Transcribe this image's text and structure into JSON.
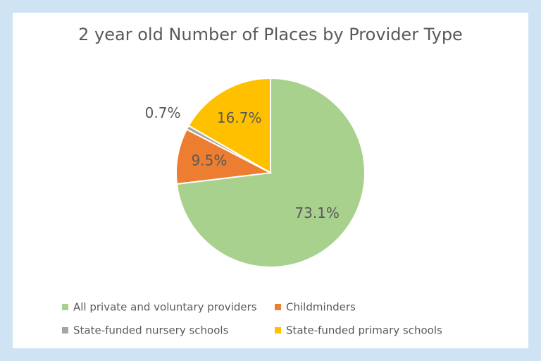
{
  "chart_data": {
    "type": "pie",
    "title": "2 year old Number of Places by Provider Type",
    "categories": [
      "All private and voluntary providers",
      "Childminders",
      "State-funded nursery schools",
      "State-funded primary schools"
    ],
    "values": [
      73.1,
      9.5,
      0.7,
      16.7
    ],
    "value_labels": [
      "73.1%",
      "9.5%",
      "0.7%",
      "16.7%"
    ],
    "colors": [
      "#a9d18e",
      "#ed7d31",
      "#a5a5a5",
      "#ffc000"
    ]
  }
}
